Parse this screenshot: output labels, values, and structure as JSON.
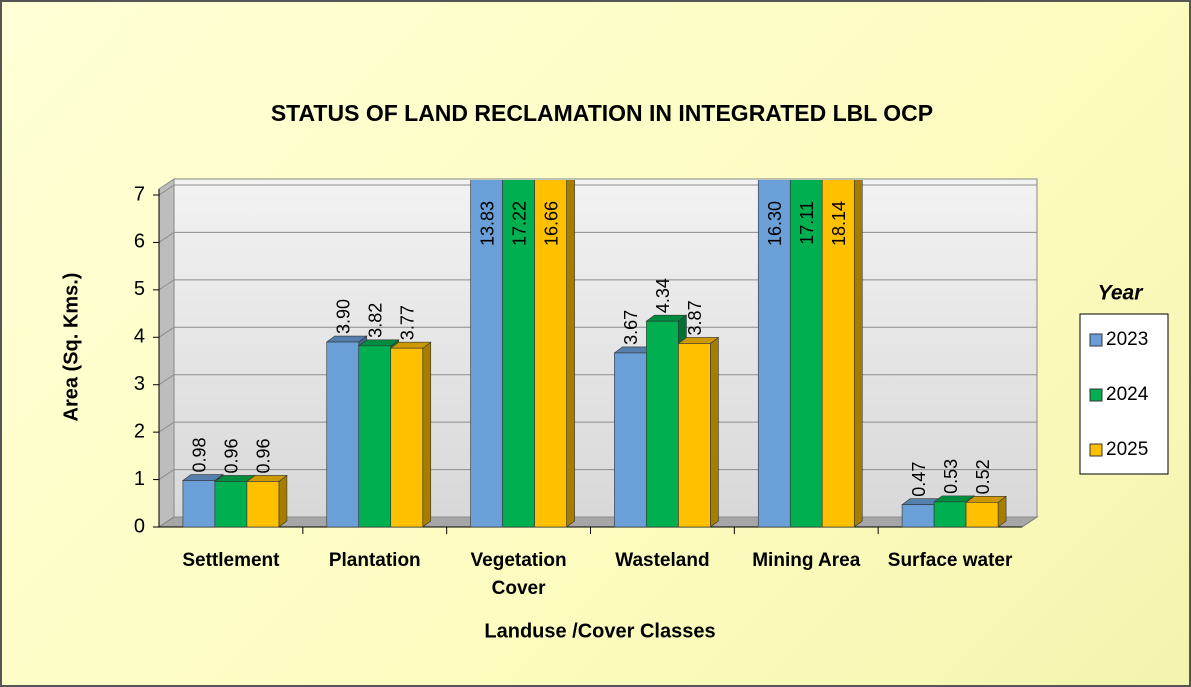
{
  "chart_data": {
    "type": "bar3d",
    "title": "STATUS OF LAND RECLAMATION   IN INTEGRATED LBL OCP",
    "x_label": "Landuse /Cover Classes",
    "y_label": "Area (Sq. Kms.)",
    "legend_title": "Year",
    "legend_position": "right",
    "grid": true,
    "categories": [
      "Settlement",
      "Plantation",
      "Vegetation Cover",
      "Wasteland",
      "Mining Area",
      "Surface water"
    ],
    "series": [
      {
        "name": "2023",
        "color": "#6a9fd8",
        "values": [
          0.98,
          3.9,
          13.83,
          3.67,
          16.3,
          0.47
        ],
        "value_labels": [
          "0.98",
          "3.90",
          "13.83",
          "3.67",
          "16.30",
          "0.47"
        ]
      },
      {
        "name": "2024",
        "color": "#00b050",
        "values": [
          0.96,
          3.82,
          17.22,
          4.34,
          17.11,
          0.53
        ],
        "value_labels": [
          "0.96",
          "3.82",
          "17.22",
          "4.34",
          "17.11",
          "0.53"
        ]
      },
      {
        "name": "2025",
        "color": "#ffc000",
        "values": [
          0.96,
          3.77,
          16.66,
          3.87,
          18.14,
          0.52
        ],
        "value_labels": [
          "0.96",
          "3.77",
          "16.66",
          "3.87",
          "18.14",
          "0.52"
        ]
      }
    ],
    "ylim": [
      0,
      7
    ],
    "yticks": [
      0,
      1,
      2,
      3,
      4,
      5,
      6,
      7
    ]
  }
}
